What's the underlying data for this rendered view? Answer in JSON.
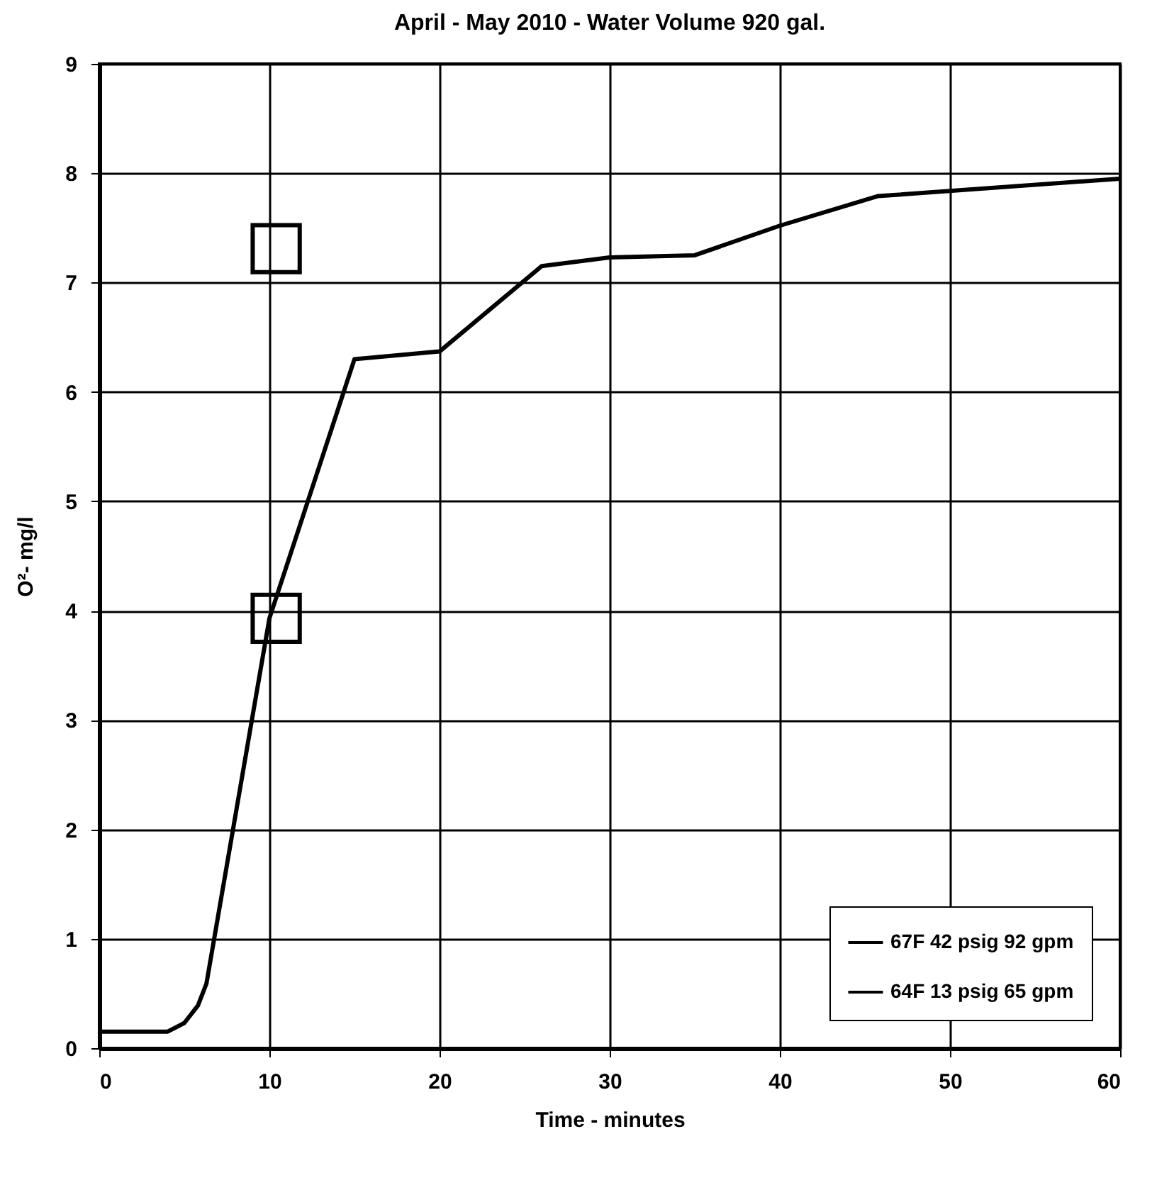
{
  "chart_data": {
    "type": "line",
    "title": "April - May 2010 - Water Volume 920 gal.",
    "xlabel": "Time - minutes",
    "ylabel": "O²- mg/l",
    "xlim": [
      0,
      60
    ],
    "xticks": [
      0,
      10,
      20,
      30,
      40,
      50,
      60
    ],
    "ylim": [
      0,
      9
    ],
    "yticks": [
      0,
      1,
      2,
      3,
      4,
      5,
      6,
      7,
      8,
      9
    ],
    "grid": true,
    "legend": "bottom right",
    "series": [
      {
        "name": "67F 42 psig 92 gpm",
        "type": "scatter",
        "marker": "square",
        "color": "#000000",
        "x": [
          10.4,
          10.4
        ],
        "values": [
          7.31,
          3.93
        ]
      },
      {
        "name": "64F 13 psig 65 gpm",
        "type": "line",
        "marker": "none",
        "color": "#000000",
        "x": [
          0,
          4,
          5,
          5.8,
          6.3,
          10,
          15,
          20,
          26,
          30,
          35,
          40,
          45.75,
          60
        ],
        "values": [
          0.15,
          0.15,
          0.23,
          0.39,
          0.59,
          3.93,
          6.3,
          6.37,
          7.15,
          7.23,
          7.25,
          7.52,
          7.79,
          7.95
        ]
      }
    ]
  }
}
